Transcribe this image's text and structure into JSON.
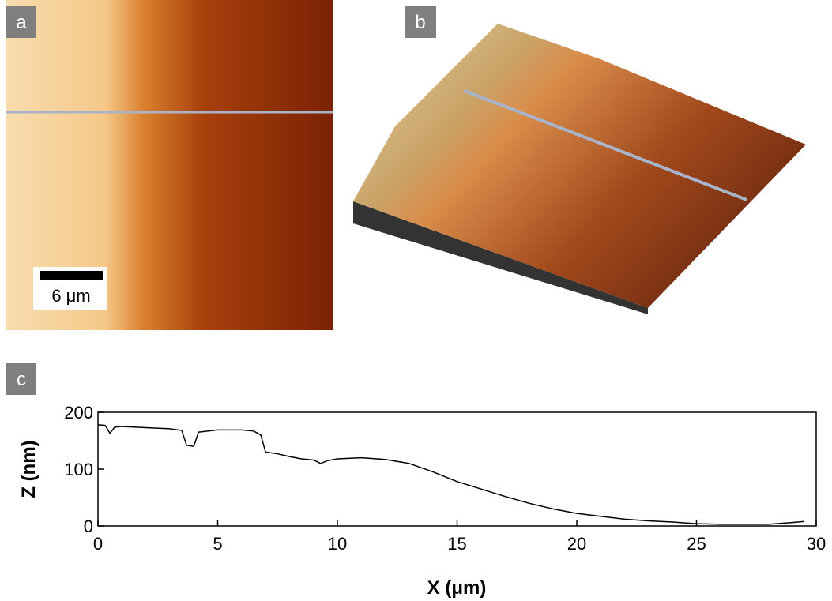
{
  "panels": [
    {
      "label": "a",
      "scale_bar": "6 μm"
    },
    {
      "label": "b"
    },
    {
      "label": "c"
    }
  ],
  "chart_data": {
    "type": "line",
    "xlabel": "X (μm)",
    "ylabel": "Z (nm)",
    "xlim": [
      0,
      30
    ],
    "ylim": [
      0,
      200
    ],
    "xticks": [
      0,
      5,
      10,
      15,
      20,
      25,
      30
    ],
    "yticks": [
      0,
      100,
      200
    ],
    "color": "#000000",
    "x": [
      0,
      0.3,
      0.5,
      0.7,
      1,
      2,
      3,
      3.5,
      3.7,
      4,
      4.2,
      5,
      6,
      6.5,
      6.8,
      7,
      7.5,
      8,
      8.5,
      9,
      9.3,
      9.6,
      10,
      11,
      12,
      13,
      14,
      15,
      16,
      17,
      18,
      19,
      20,
      21,
      22,
      23,
      24,
      25,
      26,
      27,
      28,
      29,
      29.5
    ],
    "values": [
      178,
      177,
      163,
      174,
      175,
      173,
      171,
      168,
      142,
      140,
      165,
      169,
      169,
      167,
      160,
      130,
      127,
      122,
      118,
      116,
      110,
      115,
      118,
      120,
      117,
      110,
      95,
      78,
      65,
      52,
      40,
      30,
      22,
      17,
      12,
      9,
      7,
      4,
      3,
      3,
      3,
      6,
      8
    ]
  }
}
